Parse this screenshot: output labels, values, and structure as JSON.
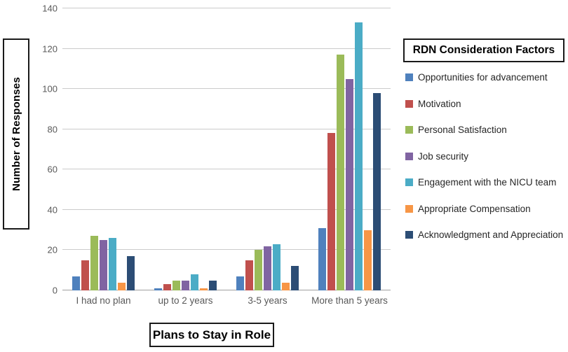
{
  "chart_data": {
    "type": "bar",
    "categories": [
      "I had no plan",
      "up to 2 years",
      "3-5 years",
      "More than 5 years"
    ],
    "series": [
      {
        "name": "Opportunities for advancement",
        "color": "#4F81BD",
        "values": [
          7,
          1,
          7,
          31
        ]
      },
      {
        "name": "Motivation",
        "color": "#C0504D",
        "values": [
          15,
          3,
          15,
          78
        ]
      },
      {
        "name": "Personal Satisfaction",
        "color": "#9BBB59",
        "values": [
          27,
          5,
          20,
          117
        ]
      },
      {
        "name": "Job security",
        "color": "#8064A2",
        "values": [
          25,
          5,
          22,
          105
        ]
      },
      {
        "name": "Engagement with the NICU team",
        "color": "#4BACC6",
        "values": [
          26,
          8,
          23,
          133
        ]
      },
      {
        "name": "Appropriate Compensation",
        "color": "#F79646",
        "values": [
          4,
          1,
          4,
          30
        ]
      },
      {
        "name": "Acknowledgment and Appreciation",
        "color": "#2C4D75",
        "values": [
          17,
          5,
          12,
          98
        ]
      }
    ],
    "title": "",
    "xlabel": "Plans to Stay in Role",
    "ylabel": "Number of Responses",
    "legend_title": "RDN Consideration Factors",
    "ylim": [
      0,
      140
    ],
    "yticks": [
      0,
      20,
      40,
      60,
      80,
      100,
      120,
      140
    ],
    "grid": true,
    "legend_position": "right"
  }
}
